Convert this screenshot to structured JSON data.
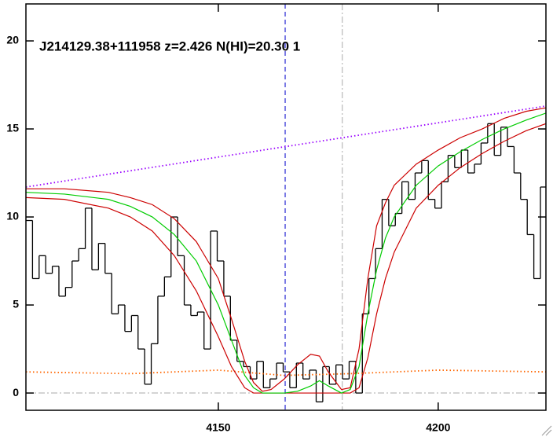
{
  "chart_data": {
    "type": "spectrum",
    "annotation": "J214129.38+111958 z=2.426 N(HI)=20.30 1",
    "xlim": [
      4106.25,
      4224.5
    ],
    "ylim": [
      -0.98,
      22.1
    ],
    "xticks": [
      4150,
      4200
    ],
    "yticks": [
      0,
      5,
      10,
      15,
      20
    ],
    "bin_width": 1.5,
    "flux": {
      "color": "#000000",
      "x": [
        4107,
        4108.5,
        4110,
        4111.5,
        4113,
        4114.5,
        4116,
        4117.5,
        4119,
        4120.5,
        4122,
        4123.5,
        4125,
        4126.5,
        4128,
        4129.5,
        4131,
        4132.5,
        4134,
        4135.5,
        4137,
        4138.5,
        4140,
        4141.5,
        4143,
        4144.5,
        4146,
        4147.5,
        4149,
        4150.5,
        4152,
        4153.5,
        4155,
        4156.5,
        4158,
        4159.5,
        4161,
        4162.5,
        4164,
        4165.5,
        4167,
        4168.5,
        4170,
        4171.5,
        4173,
        4174.5,
        4176,
        4177.5,
        4179,
        4180.5,
        4182,
        4183.5,
        4185,
        4186.5,
        4188,
        4189.5,
        4191,
        4192.5,
        4194,
        4195.5,
        4197,
        4198.5,
        4200,
        4201.5,
        4203,
        4204.5,
        4206,
        4207.5,
        4209,
        4210.5,
        4212,
        4213.5,
        4215,
        4216.5,
        4218,
        4219.5,
        4221,
        4222.5,
        4224
      ],
      "values": [
        9.8,
        6.5,
        7.8,
        6.8,
        7.2,
        5.5,
        6.0,
        7.5,
        8.2,
        10.5,
        7.0,
        8.5,
        6.8,
        4.5,
        5.0,
        3.5,
        4.4,
        2.5,
        0.5,
        2.8,
        5.5,
        6.6,
        10.0,
        7.8,
        5.0,
        4.4,
        4.6,
        2.5,
        9.2,
        7.5,
        5.5,
        3.0,
        1.8,
        1.5,
        0.8,
        1.8,
        0.3,
        0.8,
        1.7,
        1.2,
        0.3,
        1.7,
        0.8,
        1.3,
        -0.5,
        1.5,
        0.5,
        1.6,
        0.8,
        1.8,
        0.0,
        4.5,
        6.5,
        8.2,
        11.0,
        9.5,
        10.2,
        12.0,
        11.0,
        12.5,
        13.2,
        11.0,
        10.5,
        12.0,
        13.5,
        12.8,
        13.8,
        12.5,
        13.0,
        14.2,
        15.3,
        13.5,
        15.1,
        14.0,
        12.5,
        11.0,
        9.0,
        6.5,
        11.7
      ]
    },
    "series": [
      {
        "color": "#9900ff",
        "style": "dotted",
        "x": [
          4106.25,
          4224.5
        ],
        "values": [
          11.7,
          16.3
        ]
      },
      {
        "color": "#ff6600",
        "style": "dotted",
        "x": [
          4106.25,
          4130,
          4150,
          4165,
          4180,
          4200,
          4224.5
        ],
        "values": [
          1.2,
          1.1,
          1.3,
          1.0,
          1.1,
          1.3,
          1.2
        ]
      },
      {
        "color": "#cc0000",
        "style": "solid",
        "x": [
          4106.25,
          4115,
          4125,
          4130,
          4135,
          4140,
          4145,
          4150,
          4153,
          4156,
          4158,
          4160,
          4162,
          4165,
          4168,
          4171,
          4173,
          4175,
          4178,
          4180,
          4182,
          4184,
          4186,
          4188,
          4190,
          4195,
          4200,
          4205,
          4210,
          4215,
          4220,
          4224.5
        ],
        "values": [
          11.6,
          11.6,
          11.4,
          11.1,
          10.7,
          9.9,
          8.6,
          6.5,
          4.2,
          1.8,
          0.6,
          0.1,
          0.2,
          0.8,
          1.6,
          2.2,
          2.1,
          1.2,
          0.2,
          0.3,
          2.5,
          6.5,
          9.5,
          10.8,
          11.8,
          13.0,
          13.8,
          14.5,
          15.0,
          15.6,
          16.0,
          16.2
        ]
      },
      {
        "color": "#cc0000",
        "style": "solid",
        "x": [
          4106.25,
          4115,
          4125,
          4130,
          4135,
          4140,
          4145,
          4150,
          4153,
          4156,
          4158,
          4160,
          4162,
          4165,
          4168,
          4171,
          4173,
          4175,
          4178,
          4180,
          4182,
          4184,
          4186,
          4188,
          4190,
          4195,
          4200,
          4205,
          4210,
          4215,
          4220,
          4224.5
        ],
        "values": [
          11.1,
          11.0,
          10.5,
          10.0,
          9.2,
          7.8,
          5.8,
          3.2,
          1.5,
          0.3,
          0.0,
          0,
          0,
          0,
          0,
          0,
          0,
          0,
          0,
          0,
          0.3,
          2.0,
          4.5,
          6.5,
          8.0,
          10.5,
          11.8,
          12.8,
          13.6,
          14.3,
          14.9,
          15.3
        ]
      },
      {
        "color": "#00cc00",
        "style": "solid",
        "x": [
          4106.25,
          4115,
          4125,
          4130,
          4135,
          4140,
          4145,
          4150,
          4153,
          4156,
          4158,
          4160,
          4162,
          4165,
          4168,
          4171,
          4173,
          4175,
          4178,
          4180,
          4182,
          4184,
          4186,
          4188,
          4190,
          4195,
          4200,
          4205,
          4210,
          4215,
          4220,
          4224.5
        ],
        "values": [
          11.4,
          11.3,
          11.0,
          10.6,
          10.0,
          9.0,
          7.5,
          5.0,
          3.0,
          1.0,
          0.3,
          0.0,
          0.0,
          0.0,
          0.1,
          0.4,
          0.7,
          0.4,
          0.0,
          0.2,
          1.5,
          4.5,
          7.0,
          8.8,
          10.0,
          11.8,
          12.9,
          13.7,
          14.4,
          15.0,
          15.5,
          15.9
        ]
      }
    ],
    "vlines": [
      {
        "x": 4165.2,
        "color": "#0000cc",
        "style": "dashed"
      },
      {
        "x": 4178.2,
        "color": "#aaaaaa",
        "style": "dashdot"
      }
    ],
    "hlines": [
      {
        "y": 0,
        "color": "#aaaaaa",
        "style": "dashdot"
      }
    ]
  }
}
